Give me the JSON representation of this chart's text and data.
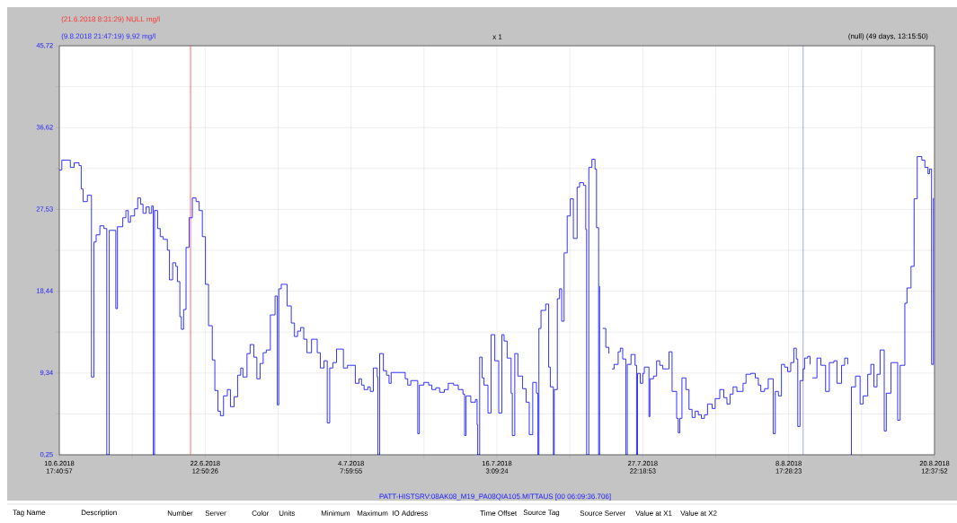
{
  "chart_data": {
    "type": "step",
    "color": "#0000ff",
    "x": [
      "2018-06-10T17:41",
      "2018-06-10T22:30",
      "2018-06-11T15:00",
      "2018-06-11T22:30",
      "2018-06-12T08:00",
      "2018-06-12T12:10",
      "2018-06-12T15:45",
      "2018-06-13T00:10",
      "2018-06-13T08:05",
      "2018-06-13T12:55",
      "2018-06-13T17:10",
      "2018-06-14T00:25",
      "2018-06-14T08:20",
      "2018-06-14T13:50",
      "2018-06-14T18:40",
      "2018-06-15T07:20",
      "2018-06-15T10:30",
      "2018-06-15T20:50",
      "2018-06-16T02:50",
      "2018-06-16T07:35",
      "2018-06-16T11:55",
      "2018-06-16T19:50",
      "2018-06-17T01:50",
      "2018-06-17T07:20",
      "2018-06-17T12:10",
      "2018-06-17T18:10",
      "2018-06-18T00:10",
      "2018-06-18T05:00",
      "2018-06-18T08:05",
      "2018-06-18T10:30",
      "2018-06-18T16:30",
      "2018-06-18T21:30",
      "2018-06-19T03:30",
      "2018-06-19T11:25",
      "2018-06-19T15:30",
      "2018-06-19T21:45",
      "2018-06-20T03:45",
      "2018-06-20T06:55",
      "2018-06-20T11:40",
      "2018-06-20T14:35",
      "2018-06-20T18:55",
      "2018-06-20T23:40",
      "2018-06-21T05:40",
      "2018-06-21T11:55",
      "2018-06-21T19:05",
      "2018-06-22T01:10",
      "2018-06-22T07:20",
      "2018-06-22T13:20",
      "2018-06-22T19:20",
      "2018-06-23T02:35",
      "2018-06-23T07:35",
      "2018-06-23T13:35",
      "2018-06-23T18:25",
      "2018-06-24T00:25",
      "2018-06-24T07:50",
      "2018-06-24T13:50",
      "2018-06-24T21:00",
      "2018-06-25T03:45",
      "2018-06-25T09:45",
      "2018-06-25T14:05",
      "2018-06-25T22:00",
      "2018-06-26T04:00",
      "2018-06-26T11:10",
      "2018-06-26T17:10",
      "2018-06-26T23:25",
      "2018-06-27T05:25",
      "2018-06-27T11:25",
      "2018-06-27T19:20",
      "2018-06-28T04:30",
      "2018-06-28T08:50",
      "2018-06-28T11:40",
      "2018-06-28T16:30",
      "2018-06-29T04:00",
      "2018-06-29T11:55",
      "2018-06-29T18:10",
      "2018-06-30T00:10",
      "2018-06-30T06:10",
      "2018-06-30T12:10",
      "2018-06-30T18:25",
      "2018-07-01T03:15",
      "2018-07-01T14:20",
      "2018-07-01T20:20",
      "2018-07-02T03:30",
      "2018-07-02T09:45",
      "2018-07-02T14:35",
      "2018-07-02T20:35",
      "2018-07-03T03:45",
      "2018-07-03T17:10",
      "2018-07-04T01:10",
      "2018-07-04T16:15",
      "2018-07-04T23:25",
      "2018-07-05T04:15",
      "2018-07-05T09:15",
      "2018-07-05T16:30",
      "2018-07-05T21:15",
      "2018-07-06T03:15",
      "2018-07-06T10:45",
      "2018-07-06T11:55",
      "2018-07-06T15:30",
      "2018-07-06T22:45",
      "2018-07-07T04:45",
      "2018-07-07T09:45",
      "2018-07-07T13:50",
      "2018-07-08T17:10",
      "2018-07-08T22:00",
      "2018-07-09T04:00",
      "2018-07-09T17:25",
      "2018-07-09T20:35",
      "2018-07-10T05:25",
      "2018-07-10T14:35",
      "2018-07-10T20:50",
      "2018-07-11T04:30",
      "2018-07-11T11:55",
      "2018-07-11T21:00",
      "2018-07-12T04:45",
      "2018-07-12T15:00",
      "2018-07-13T00:10",
      "2018-07-13T09:15",
      "2018-07-13T12:25",
      "2018-07-13T15:15",
      "2018-07-14T00:25",
      "2018-07-14T09:30",
      "2018-07-14T12:40",
      "2018-07-14T13:50",
      "2018-07-14T17:40",
      "2018-07-14T22:30",
      "2018-07-15T02:05",
      "2018-07-15T09:45",
      "2018-07-15T15:45",
      "2018-07-15T23:00",
      "2018-07-16T06:40",
      "2018-07-16T12:40",
      "2018-07-16T17:00",
      "2018-07-16T23:00",
      "2018-07-17T06:40",
      "2018-07-17T09:00",
      "2018-07-17T13:50",
      "2018-07-17T19:50",
      "2018-07-18T05:00",
      "2018-07-18T11:55",
      "2018-07-18T17:55",
      "2018-07-19T00:40",
      "2018-07-19T07:50",
      "2018-07-19T10:45",
      "2018-07-19T12:40",
      "2018-07-19T16:45",
      "2018-07-20T01:50",
      "2018-07-20T07:35",
      "2018-07-20T10:45",
      "2018-07-20T16:45",
      "2018-07-20T18:25",
      "2018-07-21T00:25",
      "2018-07-21T04:45",
      "2018-07-21T08:50",
      "2018-07-21T13:35",
      "2018-07-21T19:35",
      "2018-07-22T01:35",
      "2018-07-22T07:35",
      "2018-07-22T14:50",
      "2018-07-22T19:35",
      "2018-07-23T03:15",
      "2018-07-23T07:35",
      "2018-07-23T09:15",
      "2018-07-23T13:35",
      "2018-07-23T19:35",
      "2018-07-24T01:35",
      "2018-07-24T04:30",
      "2018-07-24T08:35",
      "2018-07-24T10:30",
      "2018-07-24T13:20",
      "2018-07-24T16:30",
      "2018-07-24T22:30",
      "2018-07-25T04:30",
      "2018-07-25T08:35",
      "2018-07-25T10:30",
      "2018-07-25T14:35",
      "2018-07-25T22:30",
      "2018-07-26T02:35",
      "2018-07-26T07:20",
      "2018-07-26T13:20",
      "2018-07-26T16:15",
      "2018-07-26T23:25",
      "2018-07-27T07:20",
      "2018-07-27T10:15",
      "2018-07-27T12:10",
      "2018-07-27T17:25",
      "2018-07-27T22:15",
      "2018-07-28T01:20",
      "2018-07-28T10:15",
      "2018-07-28T12:10",
      "2018-07-28T19:05",
      "2018-07-29T01:10",
      "2018-07-29T07:10",
      "2018-07-29T13:10",
      "2018-07-30T01:10",
      "2018-07-30T07:10",
      "2018-07-30T16:00",
      "2018-07-30T19:05",
      "2018-07-30T22:00",
      "2018-07-31T02:20",
      "2018-07-31T10:00",
      "2018-07-31T16:00",
      "2018-07-31T22:00",
      "2018-08-01T04:00",
      "2018-08-01T10:00",
      "2018-08-01T16:00",
      "2018-08-01T22:00",
      "2018-08-02T04:00",
      "2018-08-02T12:55",
      "2018-08-02T18:55",
      "2018-08-03T03:45",
      "2018-08-03T11:40",
      "2018-08-03T17:40",
      "2018-08-03T23:40",
      "2018-08-04T05:40",
      "2018-08-04T12:55",
      "2018-08-05T00:55",
      "2018-08-05T06:40",
      "2018-08-05T15:45",
      "2018-08-06T00:40",
      "2018-08-06T06:40",
      "2018-08-06T11:25",
      "2018-08-06T18:40",
      "2018-08-07T01:50",
      "2018-08-07T11:25",
      "2018-08-07T15:30",
      "2018-08-07T21:30",
      "2018-08-08T03:30",
      "2018-08-08T09:30",
      "2018-08-08T15:30",
      "2018-08-08T21:30",
      "2018-08-09T03:30",
      "2018-08-09T08:20",
      "2018-08-09T11:10",
      "2018-08-09T15:30",
      "2018-08-09T21:30",
      "2018-08-10T00:25",
      "2018-08-10T06:25",
      "2018-08-10T11:10",
      "2018-08-10T13:35",
      "2018-08-10T15:15",
      "2018-08-11T00:25",
      "2018-08-11T08:05",
      "2018-08-11T17:10",
      "2018-08-12T00:25",
      "2018-08-12T09:15",
      "2018-08-12T15:15",
      "2018-08-13T00:10",
      "2018-08-13T06:10",
      "2018-08-13T12:10",
      "2018-08-13T13:20",
      "2018-08-13T18:10",
      "2018-08-13T19:20",
      "2018-08-14T03:15",
      "2018-08-14T12:10",
      "2018-08-14T18:10",
      "2018-08-15T03:00",
      "2018-08-15T09:00",
      "2018-08-15T15:00",
      "2018-08-15T21:00",
      "2018-08-16T03:00",
      "2018-08-16T11:00",
      "2018-08-16T15:00",
      "2018-08-17T00:10",
      "2018-08-17T13:05",
      "2018-08-17T17:55",
      "2018-08-18T03:00",
      "2018-08-18T07:10",
      "2018-08-18T15:00",
      "2018-08-18T21:00",
      "2018-08-19T03:00",
      "2018-08-19T11:55",
      "2018-08-19T17:55",
      "2018-08-19T23:55",
      "2018-08-20T02:50",
      "2018-08-20T06:55",
      "2018-08-20T10:30"
    ],
    "values": [
      31.9,
      33.0,
      32.2,
      32.7,
      32.4,
      29.8,
      28.4,
      29.1,
      8.9,
      23.9,
      24.7,
      25.7,
      25.4,
      0.25,
      25.2,
      16.5,
      25.6,
      26.6,
      27.4,
      26.1,
      26.8,
      27.6,
      28.8,
      28.1,
      27.1,
      27.8,
      27.1,
      27.9,
      0.25,
      27.4,
      25.4,
      24.5,
      24.2,
      23.0,
      19.7,
      21.6,
      21.2,
      19.5,
      15.6,
      14.2,
      16.4,
      23.3,
      26.6,
      28.8,
      28.4,
      27.4,
      24.5,
      19.2,
      14.6,
      10.8,
      7.4,
      5.1,
      4.6,
      6.8,
      7.5,
      5.6,
      6.7,
      9.1,
      9.9,
      8.9,
      11.5,
      12.5,
      11.1,
      8.7,
      10.4,
      11.6,
      11.9,
      15.8,
      17.9,
      5.8,
      18.7,
      19.2,
      16.8,
      14.9,
      13.4,
      14.0,
      14.4,
      13.1,
      11.6,
      13.1,
      11.6,
      9.9,
      10.7,
      3.8,
      9.9,
      10.5,
      12.0,
      9.9,
      10.2,
      8.2,
      8.7,
      8.0,
      7.5,
      7.8,
      7.3,
      9.9,
      8.9,
      0.25,
      11.5,
      9.6,
      9.1,
      8.2,
      9.4,
      8.7,
      8.0,
      8.5,
      2.6,
      8.0,
      8.3,
      8.0,
      7.5,
      7.7,
      7.2,
      7.5,
      8.2,
      8.0,
      7.5,
      7.0,
      2.4,
      6.8,
      6.1,
      6.4,
      3.6,
      0.25,
      11.1,
      8.8,
      8.0,
      4.9,
      13.6,
      10.7,
      4.9,
      13.6,
      12.9,
      11.0,
      7.1,
      2.4,
      11.5,
      9.0,
      7.6,
      6.1,
      2.5,
      8.3,
      7.1,
      0.25,
      14.3,
      16.3,
      17.0,
      10.0,
      7.8,
      0.25,
      7.5,
      17.6,
      18.7,
      15.1,
      22.7,
      26.8,
      28.7,
      24.3,
      30.0,
      30.5,
      30.2,
      25.3,
      0.25,
      32.2,
      33.1,
      32.0,
      25.5,
      0.25,
      19.0,
      null,
      14.3,
      12.2,
      11.5,
      null,
      9.8,
      10.3,
      11.7,
      12.1,
      10.9,
      0.25,
      10.3,
      11.4,
      10.2,
      0.25,
      9.3,
      8.2,
      9.3,
      10.0,
      4.5,
      8.7,
      9.0,
      10.7,
      10.2,
      9.8,
      11.7,
      7.3,
      4.3,
      2.7,
      4.3,
      8.8,
      7.5,
      5.3,
      4.4,
      5.1,
      4.7,
      4.3,
      4.7,
      5.9,
      5.4,
      6.5,
      7.5,
      6.6,
      5.9,
      7.0,
      7.8,
      7.3,
      8.2,
      9.2,
      9.3,
      8.8,
      8.0,
      7.3,
      7.6,
      8.7,
      2.6,
      7.3,
      6.8,
      10.3,
      10.0,
      9.5,
      10.5,
      12.1,
      10.9,
      3.4,
      8.5,
      9.8,
      11.0,
      11.2,
      10.3,
      null,
      8.8,
      11.0,
      10.2,
      7.3,
      10.5,
      10.7,
      8.2,
      10.2,
      11.0,
      10.3,
      null,
      0.25,
      7.8,
      9.0,
      5.9,
      6.8,
      9.2,
      10.3,
      7.8,
      9.2,
      11.9,
      2.9,
      7.1,
      10.5,
      4.1,
      10.2,
      17.1,
      18.8,
      21.2,
      28.7,
      33.4,
      33.0,
      32.2,
      31.5,
      32.0,
      10.3,
      28.8
    ],
    "xlim": [
      "2018-06-10T17:41",
      "2018-08-20T12:38"
    ],
    "xticks": [
      {
        "value": "2018-06-10T17:41",
        "label": "10.6.2018 17:40:57"
      },
      {
        "value": "2018-06-16T15:16",
        "label": null
      },
      {
        "value": "2018-06-22T12:50",
        "label": "22.6.2018 12:50:26"
      },
      {
        "value": "2018-06-28T10:25",
        "label": null
      },
      {
        "value": "2018-07-04T08:00",
        "label": "4.7.2018 7:59:55"
      },
      {
        "value": "2018-07-10T05:35",
        "label": null
      },
      {
        "value": "2018-07-16T03:09",
        "label": "16.7.2018 3:09:24"
      },
      {
        "value": "2018-07-22T00:44",
        "label": null
      },
      {
        "value": "2018-07-27T22:19",
        "label": "27.7.2018 22:18:53"
      },
      {
        "value": "2018-08-02T19:54",
        "label": null
      },
      {
        "value": "2018-08-08T17:28",
        "label": "8.8.2018 17:28:23"
      },
      {
        "value": "2018-08-14T15:03",
        "label": null
      },
      {
        "value": "2018-08-20T12:38",
        "label": "20.8.2018 12:37:52"
      }
    ],
    "ylim": [
      0.25,
      45.72
    ],
    "yticks": [
      {
        "value": 0.25,
        "label": "0,25"
      },
      {
        "value": 4.795,
        "label": null
      },
      {
        "value": 9.34,
        "label": "9,34"
      },
      {
        "value": 13.89,
        "label": null
      },
      {
        "value": 18.44,
        "label": "18,44"
      },
      {
        "value": 22.985,
        "label": null
      },
      {
        "value": 27.53,
        "label": "27,53"
      },
      {
        "value": 32.075,
        "label": null
      },
      {
        "value": 36.62,
        "label": "36,62"
      },
      {
        "value": 41.17,
        "label": null
      },
      {
        "value": 45.72,
        "label": "45,72"
      }
    ],
    "grid": true,
    "ref_lines": [
      {
        "axis": "x",
        "value": "2018-06-21T08:31",
        "label": "(21.6.2018 8:31:29) NULL mg/l",
        "color": "#ff3030"
      },
      {
        "axis": "x",
        "value": "2018-08-09T21:47",
        "label": "(9.8.2018 21:47:19) 9,92 mg/l",
        "color": "#3030ff"
      }
    ],
    "annotations": [
      "x 1",
      "(null) (49 days, 13:15:50)",
      "PATT-HISTSRV:08AK08_M19_PA08QIA105.MITTAUS [00 06:09:36.706]",
      "Tag Name",
      "Description",
      "Number",
      "Server",
      "Color",
      "Units",
      "Minimum",
      "Maximum",
      "IO Address",
      "Time Offset",
      "Source Tag",
      "Source Server",
      "Value at X1",
      "Value at X2"
    ]
  }
}
